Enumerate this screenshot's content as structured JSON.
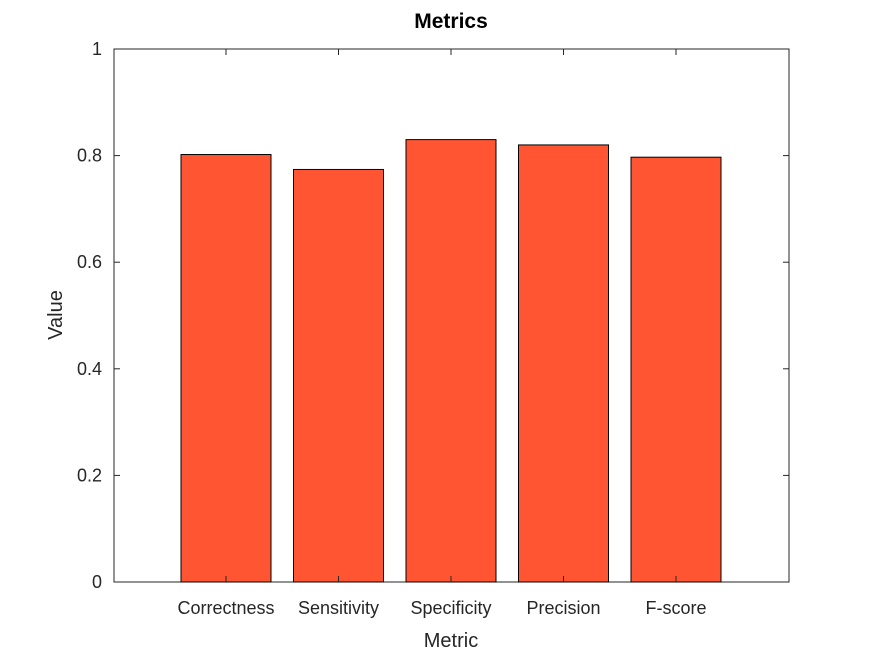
{
  "chart_data": {
    "type": "bar",
    "title": "Metrics",
    "xlabel": "Metric",
    "ylabel": "Value",
    "categories": [
      "Correctness",
      "Sensitivity",
      "Specificity",
      "Precision",
      "F-score"
    ],
    "values": [
      0.802,
      0.774,
      0.83,
      0.82,
      0.797
    ],
    "ylim": [
      0,
      1
    ],
    "yticks": [
      0,
      0.2,
      0.4,
      0.6,
      0.8,
      1
    ],
    "ytick_labels": [
      "0",
      "0.2",
      "0.4",
      "0.6",
      "0.8",
      "1"
    ],
    "grid": false,
    "legend": "none",
    "bar_color": "#FF5533"
  }
}
